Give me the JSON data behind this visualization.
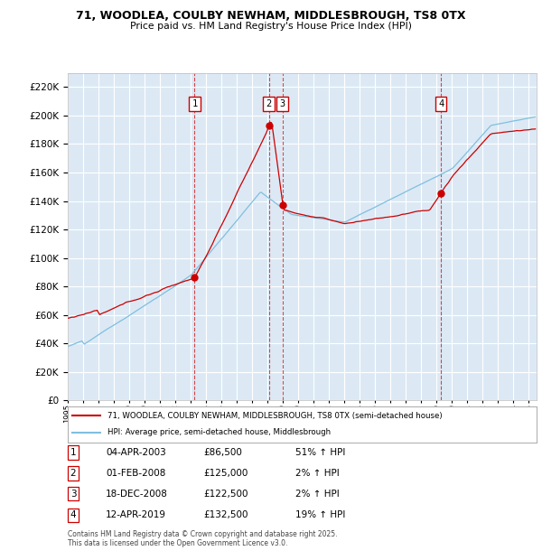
{
  "title1": "71, WOODLEA, COULBY NEWHAM, MIDDLESBROUGH, TS8 0TX",
  "title2": "Price paid vs. HM Land Registry's House Price Index (HPI)",
  "plot_bg_color": "#dce9f5",
  "ylim": [
    0,
    230000
  ],
  "yticks": [
    0,
    20000,
    40000,
    60000,
    80000,
    100000,
    120000,
    140000,
    160000,
    180000,
    200000,
    220000
  ],
  "sale_dates": [
    2003.25,
    2008.08,
    2008.96,
    2019.28
  ],
  "sale_prices": [
    86500,
    125000,
    122500,
    132500
  ],
  "sale_labels": [
    "1",
    "2",
    "3",
    "4"
  ],
  "legend_entry1": "71, WOODLEA, COULBY NEWHAM, MIDDLESBROUGH, TS8 0TX (semi-detached house)",
  "legend_entry2": "HPI: Average price, semi-detached house, Middlesbrough",
  "table_rows": [
    [
      "1",
      "04-APR-2003",
      "£86,500",
      "51% ↑ HPI"
    ],
    [
      "2",
      "01-FEB-2008",
      "£125,000",
      "2% ↑ HPI"
    ],
    [
      "3",
      "18-DEC-2008",
      "£122,500",
      "2% ↑ HPI"
    ],
    [
      "4",
      "12-APR-2019",
      "£132,500",
      "19% ↑ HPI"
    ]
  ],
  "footer": "Contains HM Land Registry data © Crown copyright and database right 2025.\nThis data is licensed under the Open Government Licence v3.0.",
  "hpi_color": "#7fbfdf",
  "price_color": "#cc0000",
  "dot_color": "#cc0000",
  "dashed_line_color": "#cc0000",
  "grid_color": "#ffffff",
  "sale_dot_color": "#cc0000"
}
